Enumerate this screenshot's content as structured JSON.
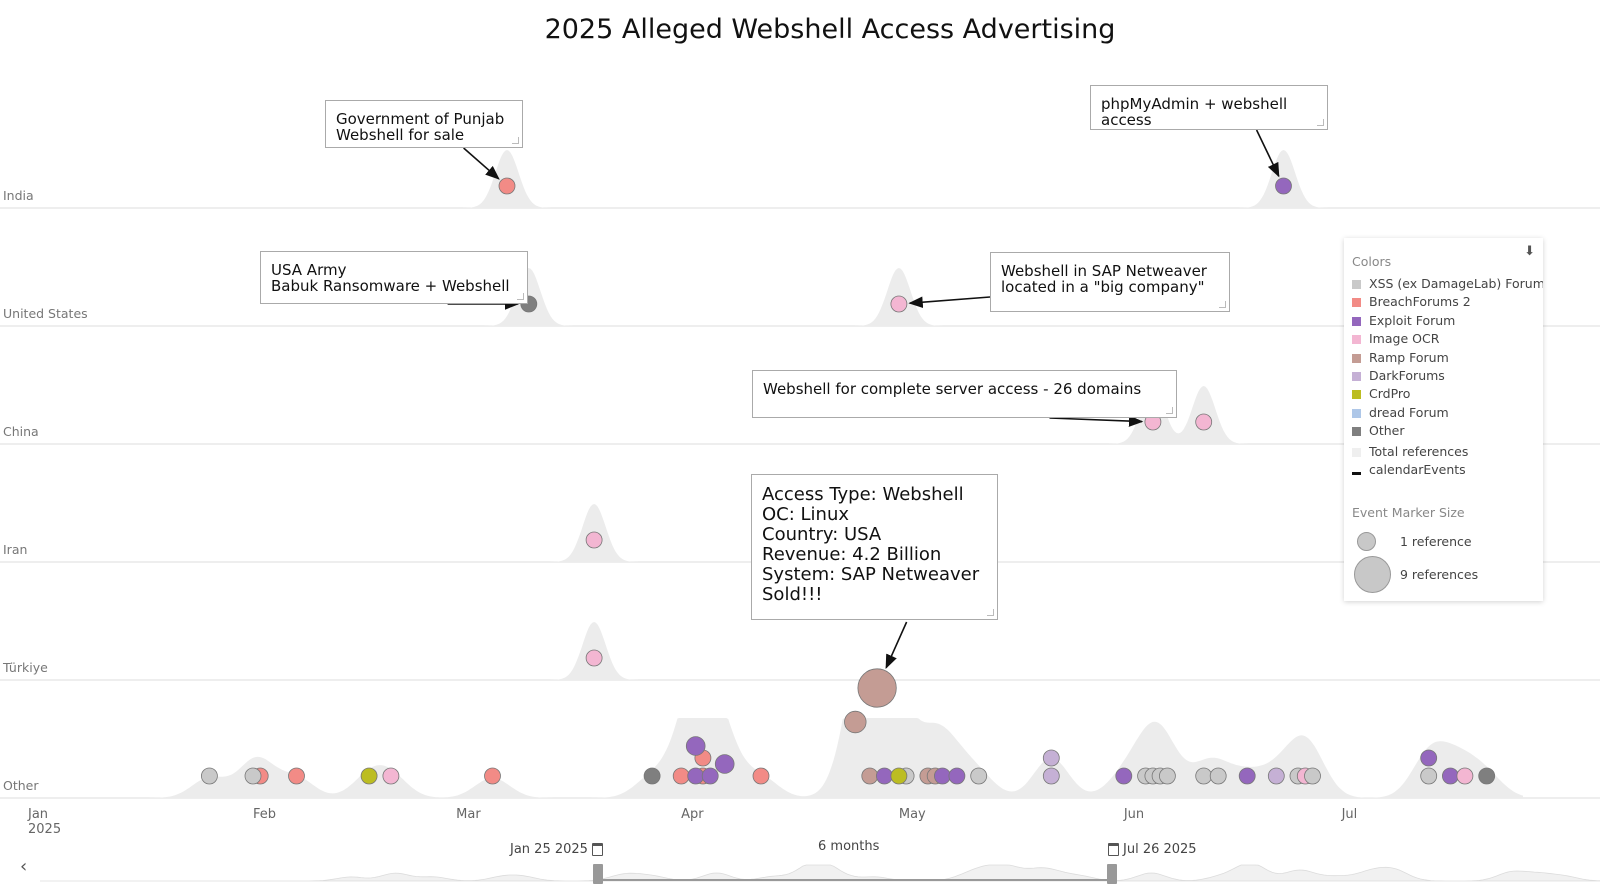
{
  "title": "2025 Alleged Webshell Access Advertising",
  "chart_data": {
    "type": "scatter",
    "title": "2025 Alleged Webshell Access Advertising",
    "x_range": [
      "2025-01-01",
      "2025-07-26"
    ],
    "x_ticks": [
      {
        "date": "2025-01-01",
        "label": "Jan",
        "sublabel": "2025"
      },
      {
        "date": "2025-02-01",
        "label": "Feb",
        "sublabel": ""
      },
      {
        "date": "2025-03-01",
        "label": "Mar",
        "sublabel": ""
      },
      {
        "date": "2025-04-01",
        "label": "Apr",
        "sublabel": ""
      },
      {
        "date": "2025-05-01",
        "label": "May",
        "sublabel": ""
      },
      {
        "date": "2025-06-01",
        "label": "Jun",
        "sublabel": ""
      },
      {
        "date": "2025-07-01",
        "label": "Jul",
        "sublabel": ""
      }
    ],
    "lanes": [
      "India",
      "United States",
      "China",
      "Iran",
      "Türkiye",
      "Other"
    ],
    "colors": {
      "XSS (ex DamageLab) Forum": "#c9c9c9",
      "BreachForums 2": "#f28b86",
      "Exploit Forum": "#9467bd",
      "Image OCR": "#f3b6d2",
      "Ramp Forum": "#c49c94",
      "DarkForums": "#c5b0d5",
      "CrdPro": "#bcbd22",
      "dread Forum": "#aec7e8",
      "Other": "#7f7f7f"
    },
    "events": [
      {
        "lane": "India",
        "date": "2025-03-08",
        "source": "BreachForums 2",
        "refs": 1
      },
      {
        "lane": "India",
        "date": "2025-06-23",
        "source": "Exploit Forum",
        "refs": 1
      },
      {
        "lane": "United States",
        "date": "2025-03-11",
        "source": "Other",
        "refs": 1
      },
      {
        "lane": "United States",
        "date": "2025-05-01",
        "source": "Image OCR",
        "refs": 1
      },
      {
        "lane": "China",
        "date": "2025-06-05",
        "source": "Image OCR",
        "refs": 1
      },
      {
        "lane": "China",
        "date": "2025-06-12",
        "source": "Image OCR",
        "refs": 1
      },
      {
        "lane": "Iran",
        "date": "2025-03-20",
        "source": "Image OCR",
        "refs": 1
      },
      {
        "lane": "Türkiye",
        "date": "2025-03-20",
        "source": "Image OCR",
        "refs": 1
      },
      {
        "lane": "Other",
        "date": "2025-01-26",
        "source": "XSS (ex DamageLab) Forum",
        "refs": 1
      },
      {
        "lane": "Other",
        "date": "2025-02-02",
        "source": "BreachForums 2",
        "refs": 1
      },
      {
        "lane": "Other",
        "date": "2025-02-01",
        "source": "XSS (ex DamageLab) Forum",
        "refs": 1
      },
      {
        "lane": "Other",
        "date": "2025-02-07",
        "source": "BreachForums 2",
        "refs": 1
      },
      {
        "lane": "Other",
        "date": "2025-02-17",
        "source": "CrdPro",
        "refs": 1
      },
      {
        "lane": "Other",
        "date": "2025-02-20",
        "source": "Image OCR",
        "refs": 1
      },
      {
        "lane": "Other",
        "date": "2025-03-06",
        "source": "BreachForums 2",
        "refs": 1
      },
      {
        "lane": "Other",
        "date": "2025-03-28",
        "source": "Other",
        "refs": 1
      },
      {
        "lane": "Other",
        "date": "2025-04-01",
        "source": "BreachForums 2",
        "refs": 1
      },
      {
        "lane": "Other",
        "date": "2025-04-04",
        "source": "BreachForums 2",
        "refs": 1
      },
      {
        "lane": "Other",
        "date": "2025-04-03",
        "source": "Exploit Forum",
        "refs": 1
      },
      {
        "lane": "Other",
        "date": "2025-04-04",
        "source": "BreachForums 2",
        "refs": 1
      },
      {
        "lane": "Other",
        "date": "2025-04-03",
        "source": "Exploit Forum",
        "refs": 2
      },
      {
        "lane": "Other",
        "date": "2025-04-05",
        "source": "Exploit Forum",
        "refs": 1
      },
      {
        "lane": "Other",
        "date": "2025-04-07",
        "source": "Exploit Forum",
        "refs": 2
      },
      {
        "lane": "Other",
        "date": "2025-04-12",
        "source": "BreachForums 2",
        "refs": 1
      },
      {
        "lane": "Other",
        "date": "2025-04-25",
        "source": "Ramp Forum",
        "refs": 3
      },
      {
        "lane": "Other",
        "date": "2025-04-28",
        "source": "Ramp Forum",
        "refs": 9
      },
      {
        "lane": "Other",
        "date": "2025-04-27",
        "source": "Ramp Forum",
        "refs": 1
      },
      {
        "lane": "Other",
        "date": "2025-04-29",
        "source": "Exploit Forum",
        "refs": 1
      },
      {
        "lane": "Other",
        "date": "2025-05-02",
        "source": "XSS (ex DamageLab) Forum",
        "refs": 1
      },
      {
        "lane": "Other",
        "date": "2025-05-01",
        "source": "CrdPro",
        "refs": 1
      },
      {
        "lane": "Other",
        "date": "2025-05-05",
        "source": "Ramp Forum",
        "refs": 1
      },
      {
        "lane": "Other",
        "date": "2025-05-06",
        "source": "Ramp Forum",
        "refs": 1
      },
      {
        "lane": "Other",
        "date": "2025-05-07",
        "source": "Exploit Forum",
        "refs": 1
      },
      {
        "lane": "Other",
        "date": "2025-05-09",
        "source": "Exploit Forum",
        "refs": 1
      },
      {
        "lane": "Other",
        "date": "2025-05-12",
        "source": "XSS (ex DamageLab) Forum",
        "refs": 1
      },
      {
        "lane": "Other",
        "date": "2025-05-22",
        "source": "DarkForums",
        "refs": 1
      },
      {
        "lane": "Other",
        "date": "2025-05-22",
        "source": "DarkForums",
        "refs": 1
      },
      {
        "lane": "Other",
        "date": "2025-06-01",
        "source": "Exploit Forum",
        "refs": 1
      },
      {
        "lane": "Other",
        "date": "2025-06-04",
        "source": "XSS (ex DamageLab) Forum",
        "refs": 1
      },
      {
        "lane": "Other",
        "date": "2025-06-05",
        "source": "XSS (ex DamageLab) Forum",
        "refs": 1
      },
      {
        "lane": "Other",
        "date": "2025-06-06",
        "source": "XSS (ex DamageLab) Forum",
        "refs": 1
      },
      {
        "lane": "Other",
        "date": "2025-06-07",
        "source": "XSS (ex DamageLab) Forum",
        "refs": 1
      },
      {
        "lane": "Other",
        "date": "2025-06-12",
        "source": "XSS (ex DamageLab) Forum",
        "refs": 1
      },
      {
        "lane": "Other",
        "date": "2025-06-14",
        "source": "XSS (ex DamageLab) Forum",
        "refs": 1
      },
      {
        "lane": "Other",
        "date": "2025-06-18",
        "source": "Exploit Forum",
        "refs": 1
      },
      {
        "lane": "Other",
        "date": "2025-06-22",
        "source": "DarkForums",
        "refs": 1
      },
      {
        "lane": "Other",
        "date": "2025-06-25",
        "source": "XSS (ex DamageLab) Forum",
        "refs": 1
      },
      {
        "lane": "Other",
        "date": "2025-06-26",
        "source": "Image OCR",
        "refs": 1
      },
      {
        "lane": "Other",
        "date": "2025-06-27",
        "source": "XSS (ex DamageLab) Forum",
        "refs": 1
      },
      {
        "lane": "Other",
        "date": "2025-07-13",
        "source": "XSS (ex DamageLab) Forum",
        "refs": 1
      },
      {
        "lane": "Other",
        "date": "2025-07-13",
        "source": "Exploit Forum",
        "refs": 1
      },
      {
        "lane": "Other",
        "date": "2025-07-16",
        "source": "Exploit Forum",
        "refs": 1
      },
      {
        "lane": "Other",
        "date": "2025-07-18",
        "source": "Image OCR",
        "refs": 1
      },
      {
        "lane": "Other",
        "date": "2025-07-21",
        "source": "Other",
        "refs": 1
      }
    ],
    "annotations": [
      {
        "lane": "India",
        "date": "2025-03-08",
        "text": "Government of Punjab\nWebshell for sale"
      },
      {
        "lane": "India",
        "date": "2025-06-23",
        "text": "phpMyAdmin + webshell access"
      },
      {
        "lane": "United States",
        "date": "2025-03-11",
        "text": "USA Army\nBabuk Ransomware + Webshell"
      },
      {
        "lane": "United States",
        "date": "2025-05-01",
        "text": "Webshell in SAP Netweaver\nlocated in a \"big company\""
      },
      {
        "lane": "China",
        "date": "2025-06-05",
        "text": "Webshell for complete server access - 26 domains"
      },
      {
        "lane": "Other",
        "date": "2025-04-28",
        "text": "Access Type: Webshell\nOC: Linux\nCountry: USA\nRevenue: 4.2 Billion\nSystem: SAP Netweaver\nSold!!!"
      }
    ],
    "density_series": "Total references",
    "events_series": "calendarEvents"
  },
  "legend": {
    "colors_header": "Colors",
    "items": [
      {
        "label": "XSS (ex DamageLab) Forum",
        "color": "#c9c9c9"
      },
      {
        "label": "BreachForums 2",
        "color": "#f28b86"
      },
      {
        "label": "Exploit Forum",
        "color": "#9467bd"
      },
      {
        "label": "Image OCR",
        "color": "#f3b6d2"
      },
      {
        "label": "Ramp Forum",
        "color": "#c49c94"
      },
      {
        "label": "DarkForums",
        "color": "#c5b0d5"
      },
      {
        "label": "CrdPro",
        "color": "#bcbd22"
      },
      {
        "label": "dread Forum",
        "color": "#aec7e8"
      },
      {
        "label": "Other",
        "color": "#7f7f7f"
      }
    ],
    "total_refs_label": "Total references",
    "calendar_label": "calendarEvents",
    "size_header": "Event Marker Size",
    "size_small_label": "1 reference",
    "size_large_label": "9 references",
    "collapse_icon": "double-chevron-down-icon"
  },
  "range": {
    "start_label": "Jan 25 2025",
    "end_label": "Jul 26 2025",
    "duration_label": "6 months",
    "start_date": "2025-01-25",
    "end_date": "2025-07-26",
    "nav_icon": "chevron-left-icon"
  }
}
